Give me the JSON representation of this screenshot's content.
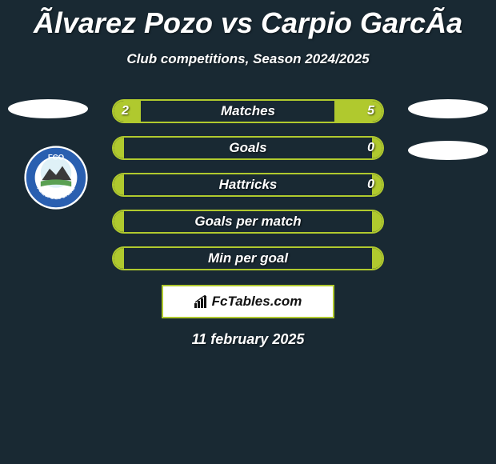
{
  "title": "Ãlvarez Pozo vs Carpio GarcÃa",
  "subtitle": "Club competitions, Season 2024/2025",
  "rows": [
    {
      "label": "Matches",
      "left": "2",
      "right": "5",
      "left_pct": 10,
      "right_pct": 18
    },
    {
      "label": "Goals",
      "left": "",
      "right": "0",
      "left_pct": 4,
      "right_pct": 4
    },
    {
      "label": "Hattricks",
      "left": "",
      "right": "0",
      "left_pct": 4,
      "right_pct": 4
    },
    {
      "label": "Goals per match",
      "left": "",
      "right": "",
      "left_pct": 4,
      "right_pct": 4
    },
    {
      "label": "Min per goal",
      "left": "",
      "right": "",
      "left_pct": 4,
      "right_pct": 4
    }
  ],
  "brand": "FcTables.com",
  "date": "11 february 2025",
  "colors": {
    "bg": "#192933",
    "accent": "#b0c92e",
    "white": "#ffffff"
  },
  "club": {
    "name": "Futbol Club Ordino",
    "initials": "FCO",
    "ring_color": "#2a5fb0",
    "inner_bg": "#ffffff",
    "mountain_color": "#3a3a3a",
    "sky_circle": "#dff1f7"
  }
}
